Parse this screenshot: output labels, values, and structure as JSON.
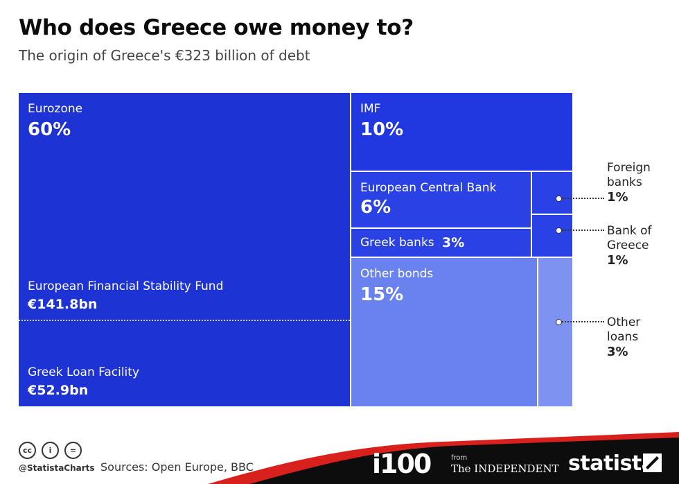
{
  "header": {
    "title": "Who does Greece owe money to?",
    "subtitle": "The origin of Greece's €323 billion of debt"
  },
  "chart_data": {
    "type": "treemap",
    "title": "Who does Greece owe money to?",
    "subtitle": "The origin of Greece's €323 billion of debt",
    "total_label": "€323 billion",
    "items": [
      {
        "name": "Eurozone",
        "label": "60%",
        "value": 60,
        "color": "#1d33d4",
        "components": [
          {
            "name": "European Financial Stability Fund",
            "label": "€141.8bn",
            "value_bn": 141.8
          },
          {
            "name": "Greek Loan Facility",
            "label": "€52.9bn",
            "value_bn": 52.9
          }
        ]
      },
      {
        "name": "IMF",
        "label": "10%",
        "value": 10,
        "color": "#2137e0"
      },
      {
        "name": "European Central Bank",
        "label": "6%",
        "value": 6,
        "color": "#2a42e4"
      },
      {
        "name": "Greek banks",
        "label": "3%",
        "value": 3,
        "color": "#2a42e4"
      },
      {
        "name": "Foreign banks",
        "label": "1%",
        "value": 1,
        "color": "#2a42e4"
      },
      {
        "name": "Bank of Greece",
        "label": "1%",
        "value": 1,
        "color": "#2a42e4"
      },
      {
        "name": "Other bonds",
        "label": "15%",
        "value": 15,
        "color": "#6a82ee"
      },
      {
        "name": "Other loans",
        "label": "3%",
        "value": 3,
        "color": "#7e93f1"
      }
    ],
    "callouts": {
      "foreign_banks": {
        "l1": "Foreign",
        "l2": "banks",
        "value": "1%"
      },
      "bank_of_greece": {
        "l1": "Bank of",
        "l2": "Greece",
        "value": "1%"
      },
      "other_loans": {
        "l1": "Other",
        "l2": "loans",
        "value": "3%"
      }
    }
  },
  "footer": {
    "license_icons": [
      "creative-commons-icon",
      "attribution-icon",
      "no-derivatives-icon"
    ],
    "cc_glyphs": [
      "cc",
      "i",
      "="
    ],
    "handle": "@StatistaCharts",
    "sources": "Sources: Open Europe, BBC",
    "brand_i100": "i100",
    "brand_from": "from",
    "brand_independent": "The INDEPENDENT",
    "brand_statista": "statista",
    "band_color_dark": "#0d0d0d",
    "band_color_red": "#d8201c"
  }
}
